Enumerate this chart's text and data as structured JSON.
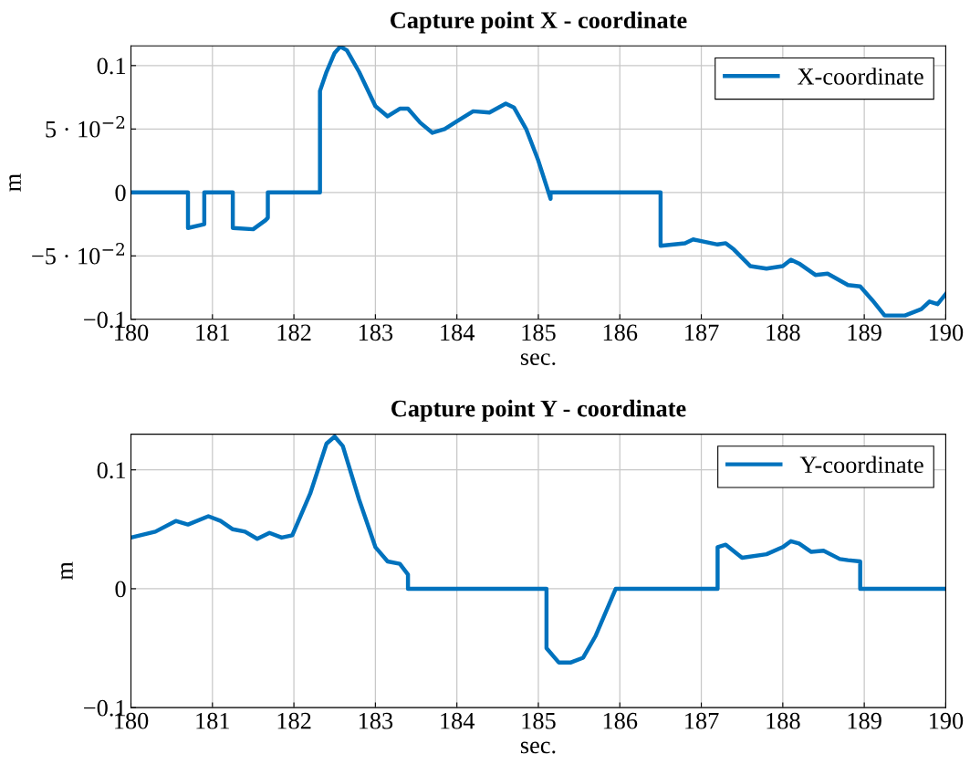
{
  "chart_data": [
    {
      "type": "line",
      "title": "Capture point X - coordinate",
      "xlabel": "sec.",
      "ylabel": "m",
      "xlim": [
        180,
        190
      ],
      "ylim": [
        -0.1,
        0.1155
      ],
      "xticks": [
        180,
        181,
        182,
        183,
        184,
        185,
        186,
        187,
        188,
        189,
        190
      ],
      "yticks": [
        {
          "value": -0.1,
          "label": "−0.1"
        },
        {
          "value": -0.05,
          "label": "−5 · 10$^{−2}$"
        },
        0,
        {
          "value": 0.05,
          "label": "5 · 10$^{−2}$"
        },
        0.1
      ],
      "grid": true,
      "legend": "top right",
      "series": [
        {
          "name": "X-coordinate",
          "color": "#0072bd",
          "x": [
            180,
            180.7,
            180.7,
            180.9,
            180.9,
            181.25,
            181.25,
            181.5,
            181.65,
            181.68,
            181.68,
            182.32,
            182.32,
            182.4,
            182.5,
            182.57,
            182.65,
            182.8,
            183.0,
            183.15,
            183.3,
            183.4,
            183.55,
            183.7,
            183.85,
            184.0,
            184.2,
            184.4,
            184.6,
            184.7,
            184.85,
            185.0,
            185.15,
            185.15,
            186.5,
            186.5,
            186.8,
            186.9,
            187.2,
            187.3,
            187.4,
            187.6,
            187.8,
            188.0,
            188.1,
            188.2,
            188.4,
            188.55,
            188.8,
            188.95,
            189.1,
            189.25,
            189.5,
            189.7,
            189.8,
            189.9,
            190
          ],
          "values": [
            0,
            0,
            -0.028,
            -0.025,
            0,
            0,
            -0.028,
            -0.029,
            -0.022,
            -0.02,
            0,
            0,
            0.08,
            0.095,
            0.11,
            0.115,
            0.112,
            0.095,
            0.068,
            0.06,
            0.066,
            0.066,
            0.055,
            0.047,
            0.05,
            0.056,
            0.064,
            0.063,
            0.07,
            0.067,
            0.05,
            0.025,
            -0.005,
            0,
            0,
            -0.042,
            -0.04,
            -0.037,
            -0.041,
            -0.04,
            -0.045,
            -0.058,
            -0.06,
            -0.058,
            -0.053,
            -0.056,
            -0.065,
            -0.064,
            -0.073,
            -0.074,
            -0.085,
            -0.097,
            -0.097,
            -0.092,
            -0.086,
            -0.088,
            -0.08
          ]
        }
      ]
    },
    {
      "type": "line",
      "title": "Capture point Y - coordinate",
      "xlabel": "sec.",
      "ylabel": "m",
      "xlim": [
        180,
        190
      ],
      "ylim": [
        -0.1,
        0.13
      ],
      "xticks": [
        180,
        181,
        182,
        183,
        184,
        185,
        186,
        187,
        188,
        189,
        190
      ],
      "yticks": [
        {
          "value": -0.1,
          "label": "−0.1"
        },
        0,
        0.1
      ],
      "grid": true,
      "legend": "top right",
      "series": [
        {
          "name": "Y-coordinate",
          "color": "#0072bd",
          "x": [
            180,
            180.3,
            180.55,
            180.7,
            180.95,
            181.1,
            181.25,
            181.4,
            181.55,
            181.7,
            181.85,
            181.98,
            182.2,
            182.4,
            182.5,
            182.6,
            182.8,
            183.0,
            183.15,
            183.3,
            183.4,
            183.4,
            185.1,
            185.1,
            185.25,
            185.4,
            185.55,
            185.7,
            185.95,
            187.2,
            187.2,
            187.3,
            187.5,
            187.8,
            188.0,
            188.1,
            188.2,
            188.35,
            188.5,
            188.7,
            188.8,
            188.95,
            188.95,
            190
          ],
          "values": [
            0.043,
            0.048,
            0.057,
            0.054,
            0.061,
            0.057,
            0.05,
            0.048,
            0.042,
            0.047,
            0.043,
            0.045,
            0.08,
            0.122,
            0.128,
            0.12,
            0.075,
            0.035,
            0.023,
            0.021,
            0.012,
            0,
            0,
            -0.05,
            -0.062,
            -0.062,
            -0.058,
            -0.04,
            0,
            0,
            0.035,
            0.037,
            0.026,
            0.029,
            0.035,
            0.04,
            0.038,
            0.031,
            0.032,
            0.025,
            0.024,
            0.023,
            0,
            0
          ]
        }
      ]
    }
  ]
}
